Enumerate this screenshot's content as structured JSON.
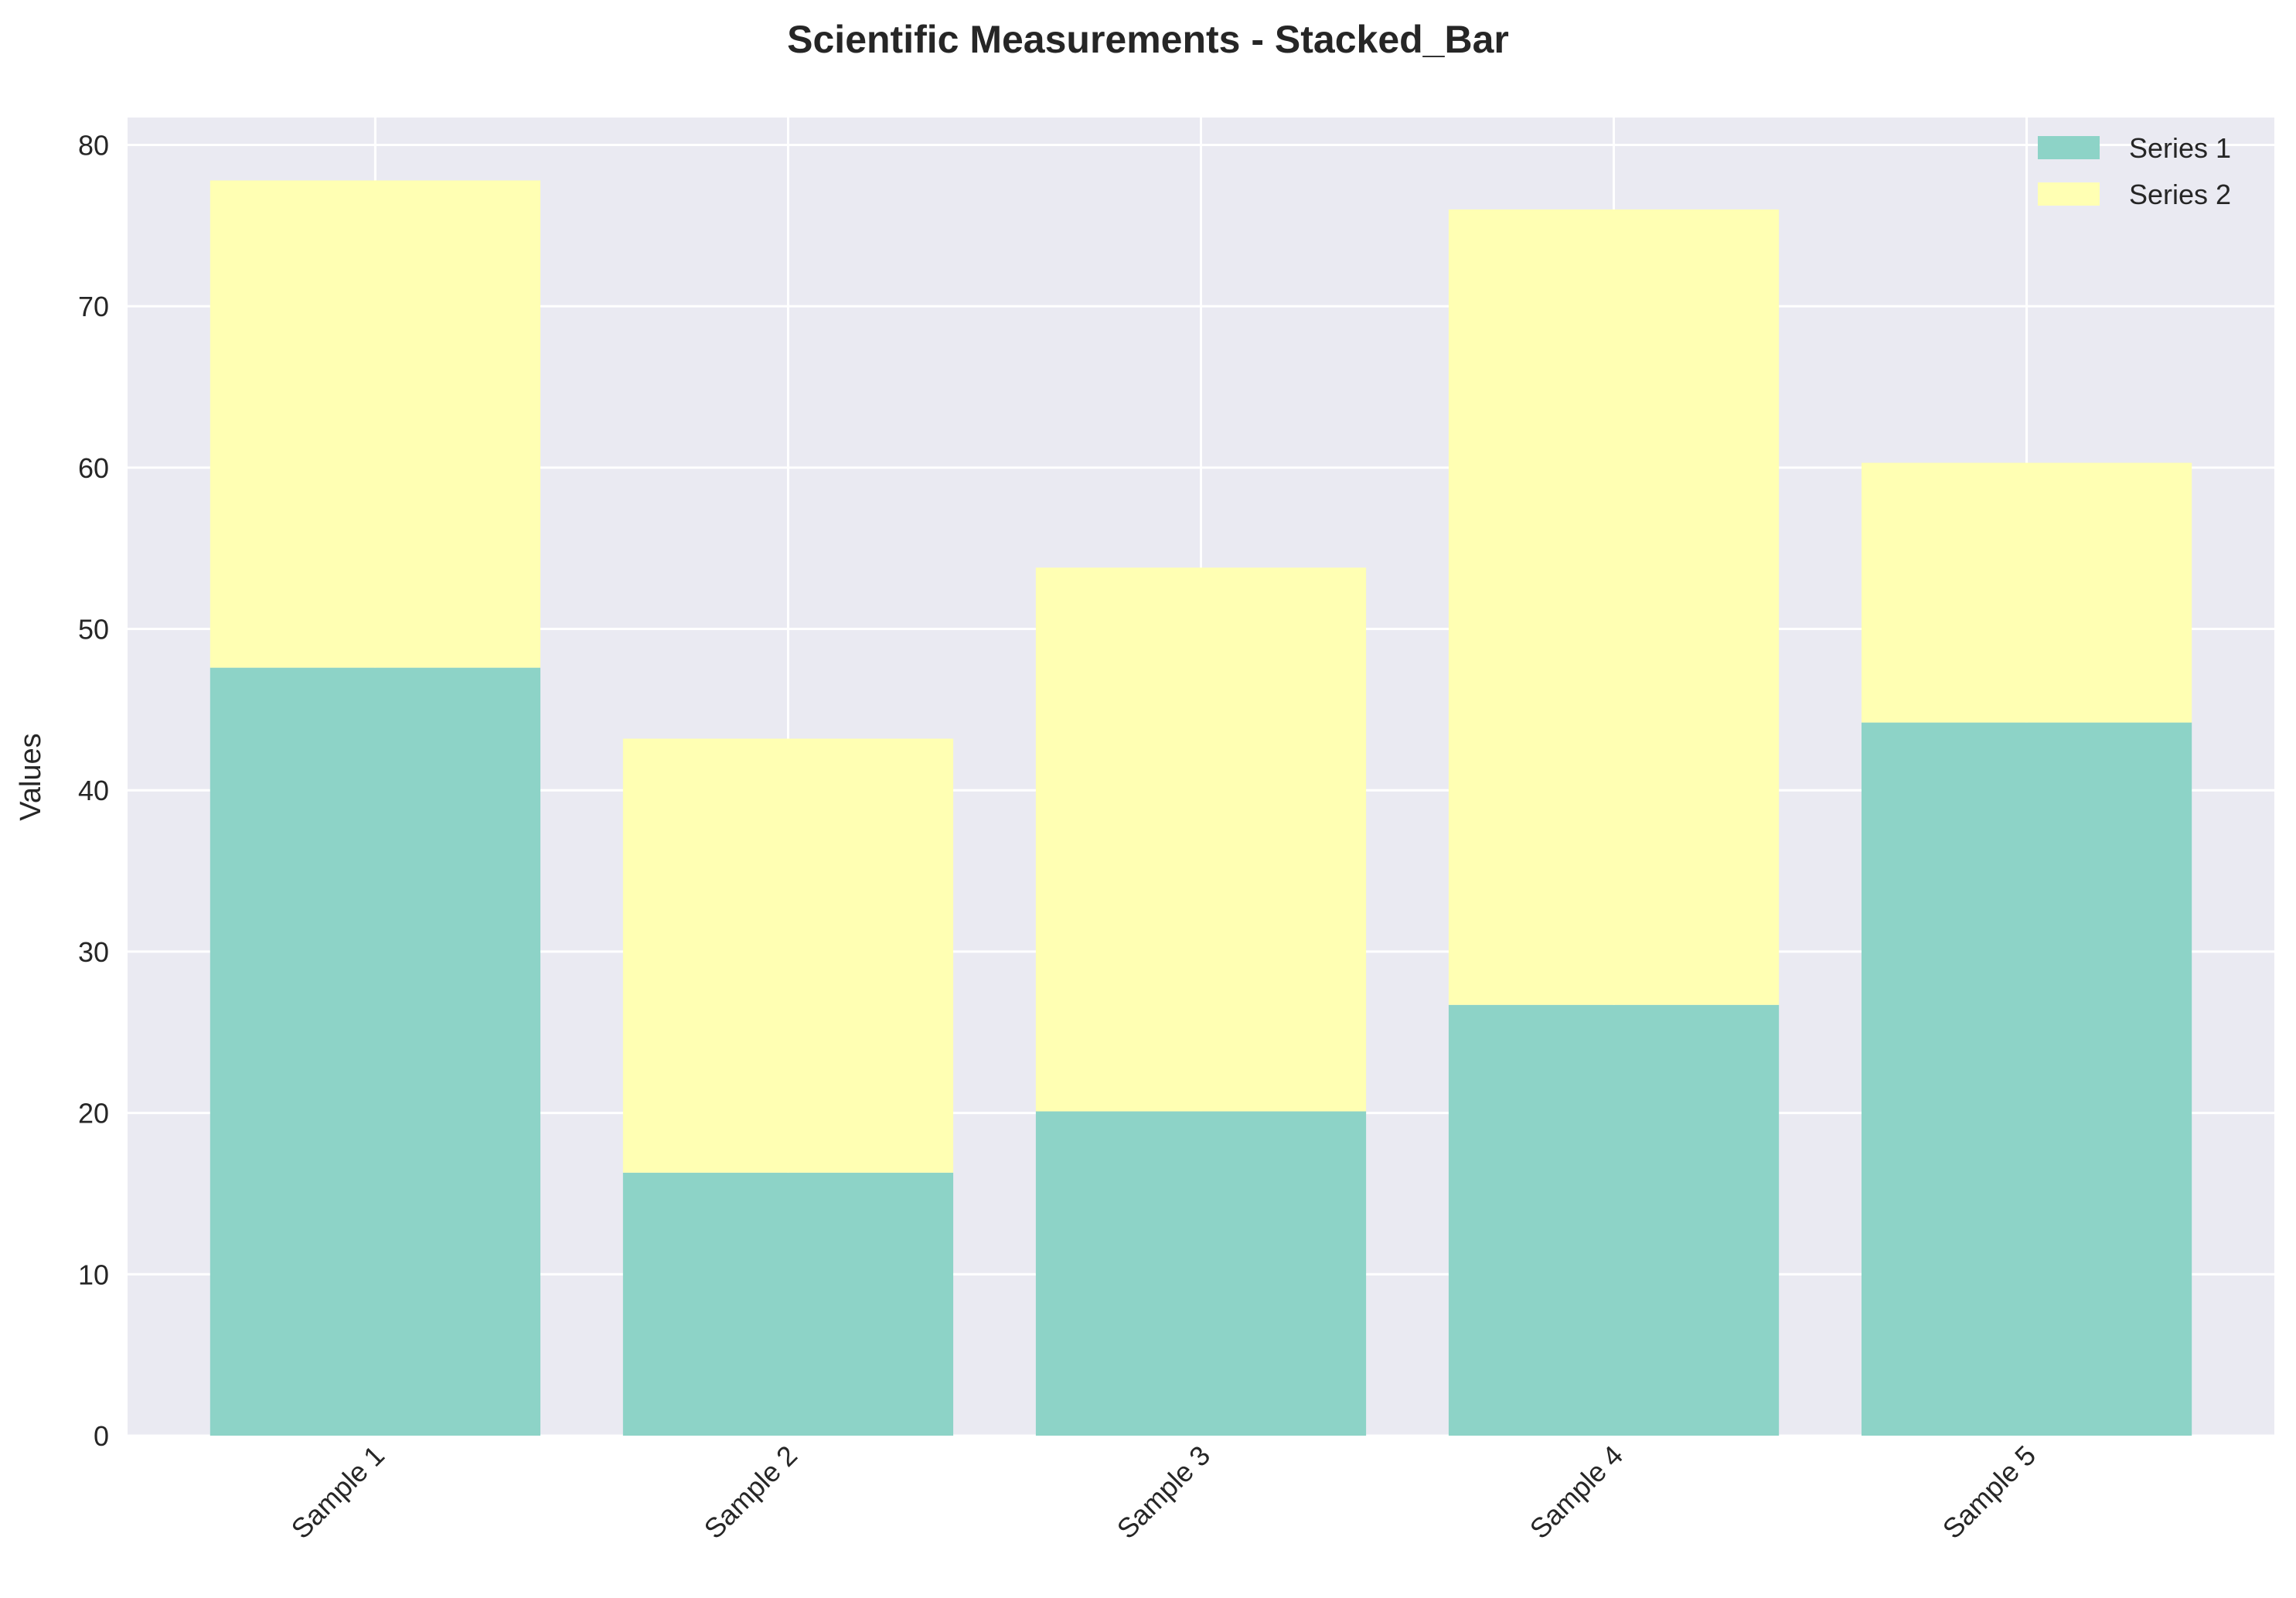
{
  "chart_data": {
    "type": "bar",
    "stacked": true,
    "title": "Scientific Measurements - Stacked_Bar",
    "xlabel": "",
    "ylabel": "Values",
    "categories": [
      "Sample 1",
      "Sample 2",
      "Sample 3",
      "Sample 4",
      "Sample 5"
    ],
    "series": [
      {
        "name": "Series 1",
        "values": [
          47.6,
          16.3,
          20.1,
          26.7,
          44.2
        ],
        "color": "#8dd3c7"
      },
      {
        "name": "Series 2",
        "values": [
          30.2,
          26.9,
          33.7,
          49.3,
          16.1
        ],
        "color": "#ffffb3"
      }
    ],
    "ylim": [
      0,
      81.7
    ],
    "yticks": [
      0,
      10,
      20,
      30,
      40,
      50,
      60,
      70,
      80
    ],
    "grid": true,
    "legend_position": "top-right",
    "background_color": "#eaeaf2",
    "grid_color": "#ffffff"
  }
}
